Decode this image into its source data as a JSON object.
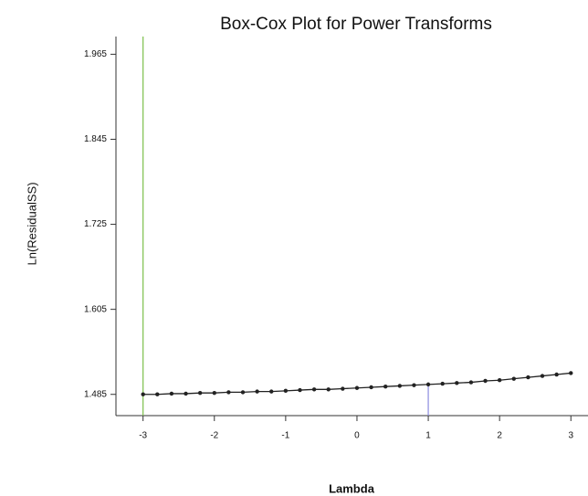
{
  "chart_data": {
    "type": "line",
    "title": "Box-Cox Plot for Power Transforms",
    "x_label": "Lambda",
    "y_label": "Ln(ResidualSS)",
    "x": [
      -3,
      -2.8,
      -2.6,
      -2.4,
      -2.2,
      -2,
      -1.8,
      -1.6,
      -1.4,
      -1.2,
      -1,
      -0.8,
      -0.6,
      -0.4,
      -0.2,
      0,
      0.2,
      0.4,
      0.6,
      0.8,
      1,
      1.2,
      1.4,
      1.6,
      1.8,
      2,
      2.2,
      2.4,
      2.6,
      2.8,
      3
    ],
    "series": [
      {
        "color": "#222222",
        "values": [
          1.485,
          1.485,
          1.486,
          1.486,
          1.487,
          1.487,
          1.488,
          1.488,
          1.489,
          1.489,
          1.49,
          1.491,
          1.492,
          1.492,
          1.493,
          1.494,
          1.495,
          1.496,
          1.497,
          1.498,
          1.499,
          1.5,
          1.501,
          1.502,
          1.504,
          1.505,
          1.507,
          1.509,
          1.511,
          1.513,
          1.515
        ]
      }
    ],
    "reference_lines": [
      {
        "x": -3,
        "color": "#7cc04a"
      },
      {
        "x": 1,
        "color": "#8a8ae0"
      }
    ],
    "xlim": [
      -3.38,
      3.24
    ],
    "ylim": [
      1.455,
      1.99
    ],
    "xticks": [
      -3,
      -2,
      -1,
      0,
      1,
      2,
      3
    ],
    "yticks": [
      1.485,
      1.605,
      1.725,
      1.845,
      1.965
    ]
  }
}
